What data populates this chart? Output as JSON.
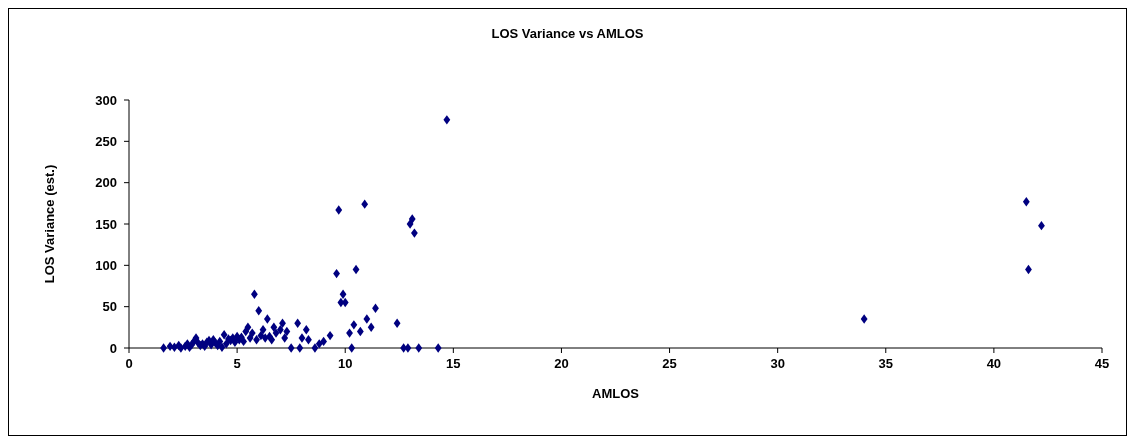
{
  "chart_data": {
    "type": "scatter",
    "title": "LOS Variance vs AMLOS",
    "xlabel": "AMLOS",
    "ylabel": "LOS Variance (est.)",
    "marker": "diamond",
    "xlim": [
      0,
      45
    ],
    "xticks": [
      0,
      5,
      10,
      15,
      20,
      25,
      30,
      35,
      40,
      45
    ],
    "ylim": [
      0,
      300
    ],
    "yticks": [
      0,
      50,
      100,
      150,
      200,
      250,
      300
    ],
    "series": [
      {
        "color": "#000080",
        "x": [
          1.6,
          1.9,
          2.1,
          2.3,
          2.4,
          2.6,
          2.7,
          2.8,
          2.9,
          3.0,
          3.1,
          3.2,
          3.3,
          3.4,
          3.5,
          3.6,
          3.7,
          3.8,
          3.9,
          4.0,
          4.1,
          4.2,
          4.3,
          4.4,
          4.5,
          4.6,
          4.7,
          4.8,
          4.9,
          5.0,
          5.1,
          5.2,
          5.3,
          5.4,
          5.5,
          5.6,
          5.7,
          5.8,
          5.9,
          6.0,
          6.1,
          6.2,
          6.3,
          6.4,
          6.5,
          6.6,
          6.7,
          6.8,
          7.0,
          7.1,
          7.2,
          7.3,
          7.5,
          7.8,
          7.9,
          8.0,
          8.2,
          8.3,
          8.6,
          8.8,
          9.0,
          9.3,
          9.6,
          9.7,
          9.8,
          9.9,
          10.0,
          10.2,
          10.3,
          10.4,
          10.5,
          10.7,
          10.9,
          11.0,
          11.2,
          11.4,
          12.4,
          12.7,
          12.9,
          13.0,
          13.1,
          13.2,
          13.4,
          14.3,
          14.7,
          34.0,
          41.5,
          41.6,
          42.2
        ],
        "values": [
          0,
          2,
          1,
          3,
          0,
          2,
          5,
          1,
          4,
          8,
          12,
          6,
          3,
          5,
          2,
          7,
          9,
          4,
          10,
          6,
          3,
          8,
          1,
          16,
          5,
          11,
          9,
          12,
          7,
          14,
          10,
          13,
          8,
          20,
          25,
          12,
          18,
          65,
          10,
          45,
          15,
          22,
          12,
          35,
          14,
          10,
          25,
          18,
          22,
          30,
          12,
          20,
          0,
          30,
          0,
          12,
          22,
          10,
          0,
          5,
          8,
          15,
          90,
          167,
          55,
          65,
          55,
          18,
          0,
          28,
          95,
          20,
          174,
          35,
          25,
          48,
          30,
          0,
          0,
          150,
          156,
          139,
          0,
          0,
          276,
          35,
          177,
          95,
          148
        ]
      }
    ]
  }
}
